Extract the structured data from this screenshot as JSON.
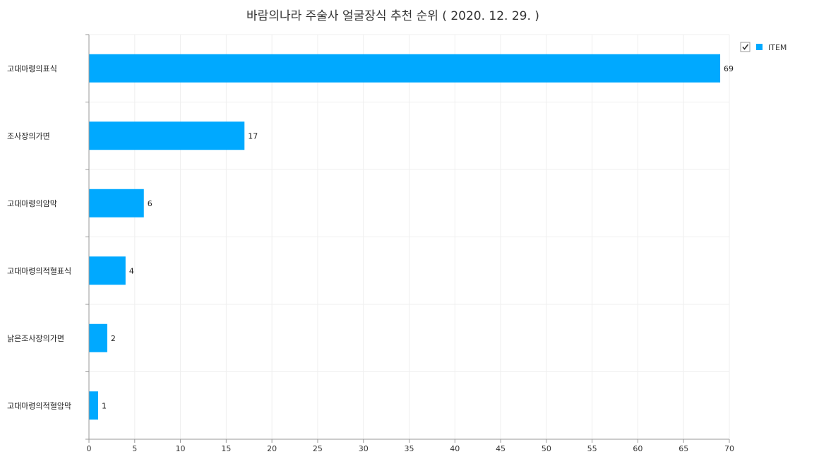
{
  "chart_data": {
    "type": "bar",
    "orientation": "horizontal",
    "title": "바람의나라 주술사 얼굴장식 추천 순위 ( 2020. 12. 29. )",
    "xlabel": "",
    "ylabel": "",
    "categories": [
      "고대마령의표식",
      "조사장의가면",
      "고대마령의암막",
      "고대마령의적혈표식",
      "낡은조사장의가면",
      "고대마령의적혈암막"
    ],
    "series": [
      {
        "name": "ITEM",
        "values": [
          69,
          17,
          6,
          4,
          2,
          1
        ]
      }
    ],
    "xlim": [
      0,
      70
    ],
    "xticks": [
      0,
      5,
      10,
      15,
      20,
      25,
      30,
      35,
      40,
      45,
      50,
      55,
      60,
      65,
      70
    ],
    "grid": true,
    "legend": "top-right",
    "bar_color": "#00a9ff",
    "legend_checked": true
  }
}
